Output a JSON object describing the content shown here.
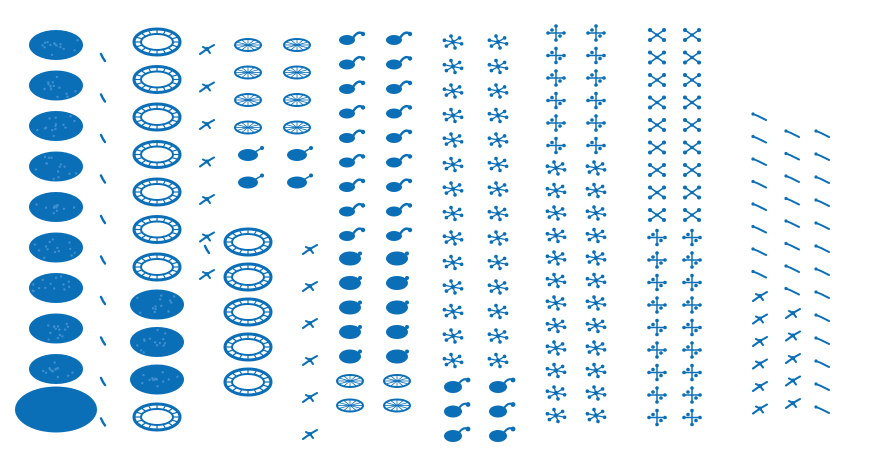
{
  "color": "#0b6fb8",
  "columns": [
    {
      "items": [
        "blob",
        "blob",
        "blob",
        "blob",
        "blob",
        "blob",
        "blob",
        "blob",
        "blob",
        "blob-large"
      ]
    },
    {
      "items": [
        "tick",
        "tick",
        "tick",
        "tick",
        "tick",
        "tick",
        "tick",
        "tick",
        "tick",
        "tick"
      ]
    },
    {
      "items": [
        "ring",
        "ring",
        "ring",
        "ring",
        "ring",
        "ring",
        "ring",
        "blob",
        "blob",
        "blob",
        "ring"
      ]
    },
    {
      "items": [
        "fly",
        "fly",
        "fly",
        "fly",
        "fly",
        "fly",
        "fly",
        "tick"
      ]
    },
    {
      "items": [
        "ring-small",
        "ring-small",
        "ring-small",
        "ring-small",
        "dot-tail",
        "dot-tail",
        "ring",
        "ring",
        "ring",
        "ring",
        "ring"
      ]
    },
    {
      "items": [
        "ring-small",
        "ring-small",
        "ring-small",
        "ring-small",
        "dot-tail",
        "dot-tail"
      ]
    },
    {
      "items": [
        "fly",
        "fly",
        "fly",
        "fly",
        "fly",
        "fly"
      ]
    },
    {
      "items": [
        "swirl",
        "swirl",
        "swirl",
        "swirl",
        "swirl",
        "swirl",
        "swirl",
        "swirl",
        "swirl",
        "blob-small",
        "blob-small",
        "blob-small",
        "blob-small",
        "blob-small",
        "ring-small",
        "ring-small"
      ]
    },
    {
      "items": [
        "swirl",
        "swirl",
        "swirl",
        "swirl",
        "swirl",
        "swirl",
        "swirl",
        "swirl",
        "swirl",
        "blob-small",
        "blob-small",
        "blob-small",
        "blob-small",
        "blob-small",
        "ring-small",
        "ring-small"
      ]
    },
    {
      "items": [
        "star",
        "star",
        "star",
        "star",
        "star",
        "star",
        "star",
        "star",
        "star",
        "star",
        "star",
        "star",
        "star",
        "star",
        "blob-tail",
        "blob-tail",
        "blob-tail"
      ]
    },
    {
      "items": [
        "star",
        "star",
        "star",
        "star",
        "star",
        "star",
        "star",
        "star",
        "star",
        "star",
        "star",
        "star",
        "star",
        "star",
        "blob-tail",
        "blob-tail",
        "blob-tail"
      ]
    },
    {
      "items": [
        "cross",
        "cross",
        "cross",
        "cross",
        "cross",
        "cross",
        "star",
        "star",
        "star",
        "star",
        "star",
        "star",
        "star",
        "star",
        "star",
        "star",
        "star",
        "star"
      ]
    },
    {
      "items": [
        "cross",
        "cross",
        "cross",
        "cross",
        "cross",
        "cross",
        "star",
        "star",
        "star",
        "star",
        "star",
        "star",
        "star",
        "star",
        "star",
        "star",
        "star",
        "star"
      ]
    },
    {
      "items": [
        "bow",
        "bow",
        "bow",
        "bow",
        "bow",
        "bow",
        "bow",
        "bow",
        "bow",
        "cross",
        "cross",
        "cross",
        "cross",
        "cross",
        "cross",
        "cross",
        "cross",
        "cross"
      ]
    },
    {
      "items": [
        "bow",
        "bow",
        "bow",
        "bow",
        "bow",
        "bow",
        "bow",
        "bow",
        "bow",
        "cross",
        "cross",
        "cross",
        "cross",
        "cross",
        "cross",
        "cross",
        "cross",
        "cross"
      ]
    },
    {
      "items": [
        "dash",
        "dash",
        "dash",
        "dash",
        "dash",
        "dash",
        "dash",
        "dash",
        "fly",
        "fly",
        "fly",
        "fly",
        "fly",
        "fly"
      ]
    },
    {
      "items": [
        "dash",
        "dash",
        "dash",
        "dash",
        "dash",
        "dash",
        "dash",
        "dash",
        "fly",
        "fly",
        "fly",
        "fly",
        "fly"
      ]
    },
    {
      "items": [
        "dash",
        "dash",
        "dash",
        "dash",
        "dash",
        "dash",
        "dash",
        "dash",
        "dash",
        "dash",
        "dash",
        "dash",
        "dash"
      ]
    }
  ]
}
